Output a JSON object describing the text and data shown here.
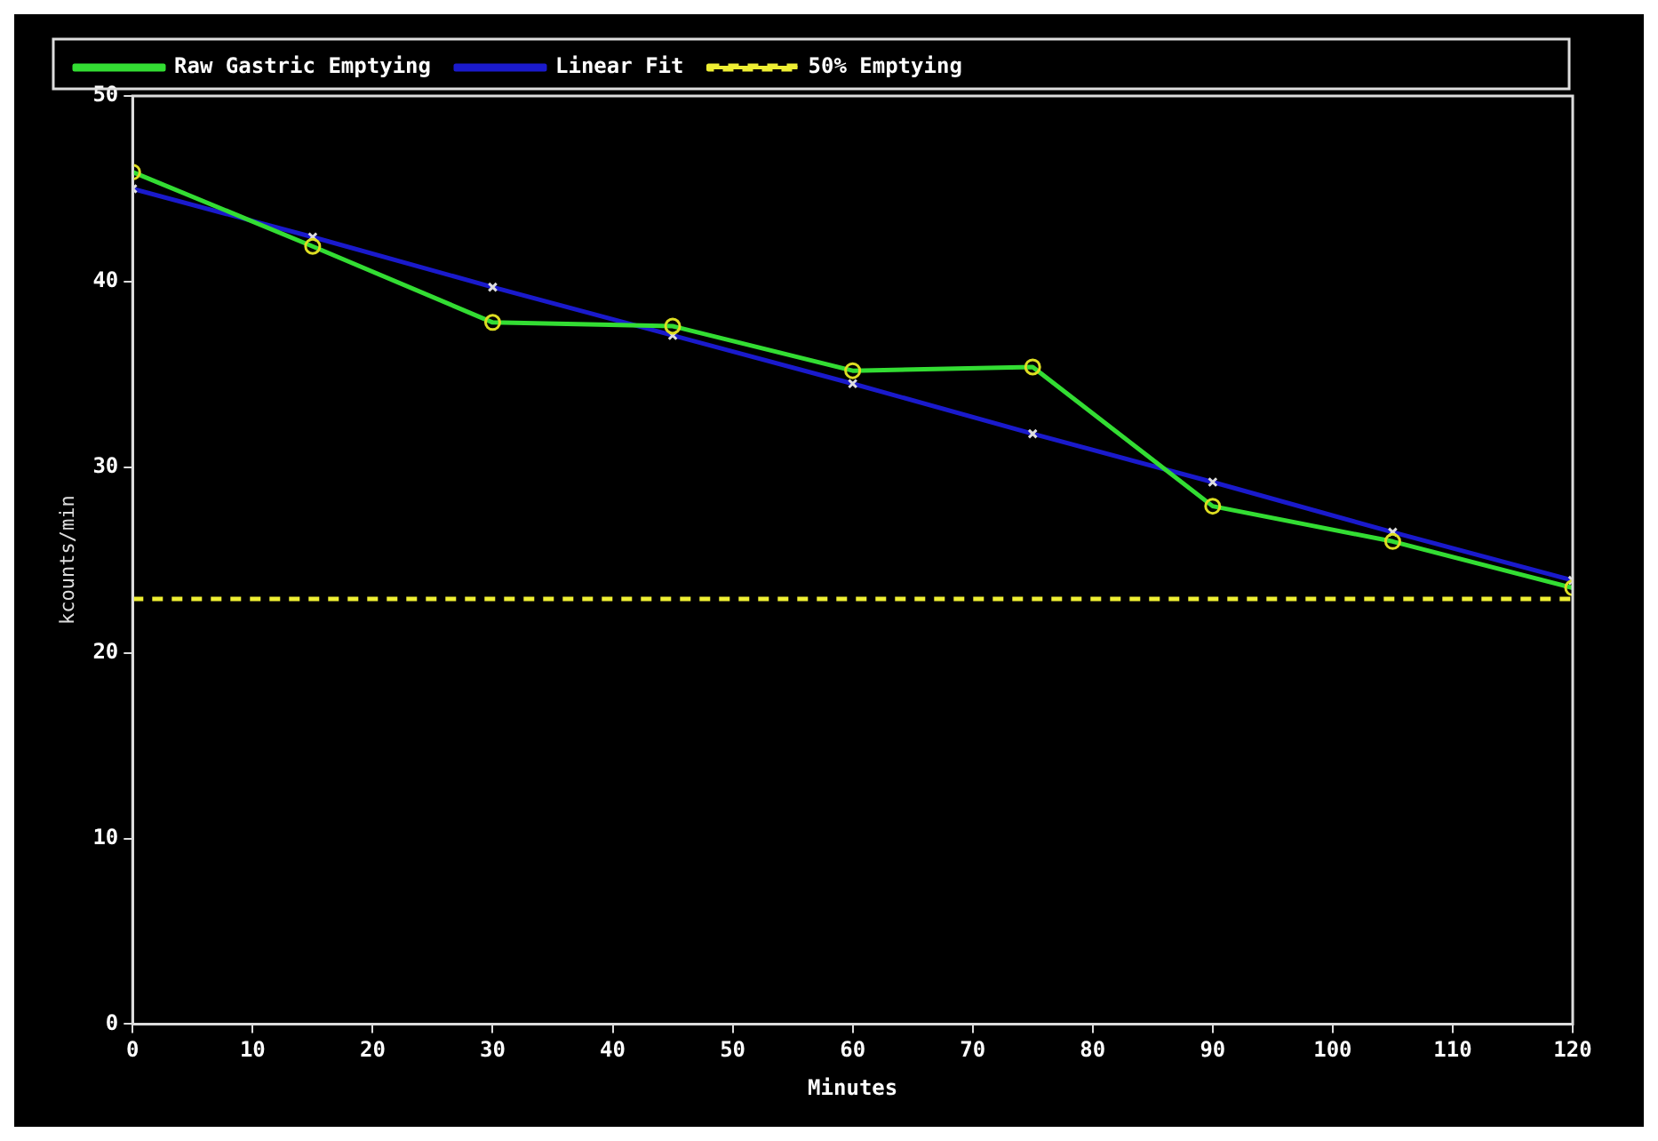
{
  "chart_data": {
    "type": "line",
    "xlabel": "Minutes",
    "ylabel": "kcounts/min",
    "x": [
      0,
      15,
      30,
      45,
      60,
      75,
      90,
      105,
      120
    ],
    "series": [
      {
        "name": "Raw Gastric Emptying",
        "color": "#33dd33",
        "marker": "circle",
        "values": [
          45.9,
          41.9,
          37.8,
          37.6,
          35.2,
          35.4,
          27.9,
          26.0,
          23.5
        ]
      },
      {
        "name": "Linear Fit",
        "color": "#1a1acc",
        "marker": "cross",
        "values": [
          45.0,
          42.4,
          39.7,
          37.1,
          34.5,
          31.8,
          29.2,
          26.5,
          23.9
        ]
      },
      {
        "name": "50% Emptying",
        "color": "#eeee33",
        "marker": "none",
        "line_style": "dashed",
        "values": [
          22.9,
          22.9,
          22.9,
          22.9,
          22.9,
          22.9,
          22.9,
          22.9,
          22.9
        ]
      }
    ],
    "xlim": [
      0,
      120
    ],
    "xticks": [
      0,
      10,
      20,
      30,
      40,
      50,
      60,
      70,
      80,
      90,
      100,
      110,
      120
    ],
    "ylim": [
      0,
      50
    ],
    "yticks": [
      0,
      10,
      20,
      30,
      40,
      50
    ],
    "grid": false,
    "legend": "top"
  }
}
